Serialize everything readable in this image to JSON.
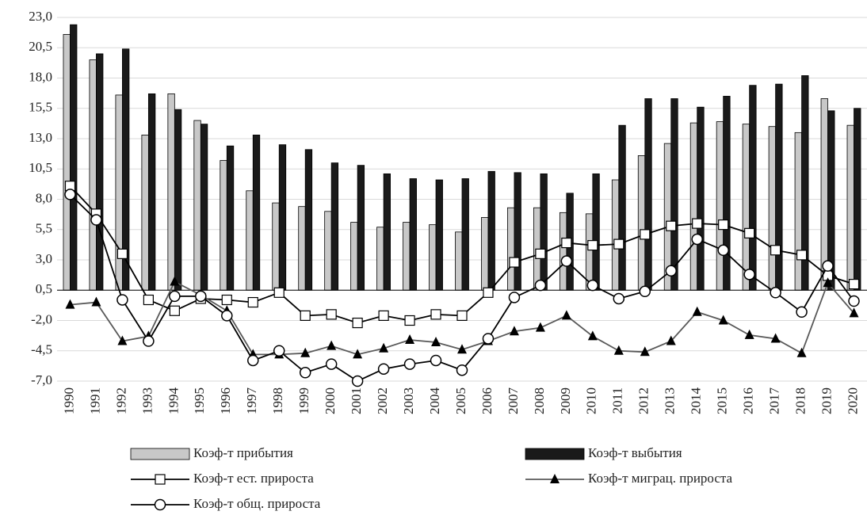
{
  "chart_data": {
    "type": "bar-line",
    "categories": [
      "1990",
      "1991",
      "1992",
      "1993",
      "1994",
      "1995",
      "1996",
      "1997",
      "1998",
      "1999",
      "2000",
      "2001",
      "2002",
      "2003",
      "2004",
      "2005",
      "2006",
      "2007",
      "2008",
      "2009",
      "2010",
      "2011",
      "2012",
      "2013",
      "2014",
      "2015",
      "2016",
      "2017",
      "2018",
      "2019",
      "2020"
    ],
    "ylim": [
      -7.0,
      23.0
    ],
    "yticks": [
      {
        "value": -7.0,
        "label": "-7,0"
      },
      {
        "value": -4.5,
        "label": "-4,5"
      },
      {
        "value": -2.0,
        "label": "-2,0"
      },
      {
        "value": 0.5,
        "label": "0,5"
      },
      {
        "value": 3.0,
        "label": "3,0"
      },
      {
        "value": 5.5,
        "label": "5,5"
      },
      {
        "value": 8.0,
        "label": "8,0"
      },
      {
        "value": 10.5,
        "label": "10,5"
      },
      {
        "value": 13.0,
        "label": "13,0"
      },
      {
        "value": 15.5,
        "label": "15,5"
      },
      {
        "value": 18.0,
        "label": "18,0"
      },
      {
        "value": 20.5,
        "label": "20,5"
      },
      {
        "value": 23.0,
        "label": "23,0"
      }
    ],
    "grid": true,
    "legend": "bottom",
    "series": [
      {
        "name": "Коэф-т прибытия",
        "kind": "bar",
        "color": "#c8c8c8",
        "values": [
          21.6,
          19.5,
          16.6,
          13.3,
          16.7,
          14.5,
          11.2,
          8.7,
          7.7,
          7.4,
          7.0,
          6.1,
          5.7,
          6.1,
          5.9,
          5.3,
          6.5,
          7.3,
          7.3,
          6.9,
          6.8,
          9.6,
          11.6,
          12.6,
          14.3,
          14.4,
          14.2,
          14.0,
          13.5,
          16.3,
          14.1
        ]
      },
      {
        "name": "Коэф-т выбытия",
        "kind": "bar",
        "color": "#1a1a1a",
        "values": [
          22.4,
          20.0,
          20.4,
          16.7,
          15.4,
          14.2,
          12.4,
          13.3,
          12.5,
          12.1,
          11.0,
          10.8,
          10.1,
          9.7,
          9.6,
          9.7,
          10.3,
          10.2,
          10.1,
          8.5,
          10.1,
          14.1,
          16.3,
          16.3,
          15.6,
          16.5,
          17.4,
          17.5,
          18.2,
          15.3,
          15.5
        ]
      },
      {
        "name": "Коэф-т ест. прироста",
        "kind": "line",
        "marker": "square",
        "color": "#000000",
        "values": [
          9.1,
          6.8,
          3.5,
          -0.3,
          -1.2,
          -0.2,
          -0.3,
          -0.5,
          0.3,
          -1.6,
          -1.5,
          -2.2,
          -1.6,
          -2.0,
          -1.5,
          -1.6,
          0.3,
          2.8,
          3.5,
          4.4,
          4.2,
          4.3,
          5.1,
          5.8,
          6.0,
          5.9,
          5.2,
          3.8,
          3.4,
          1.7,
          1.0
        ]
      },
      {
        "name": "Коэф-т миграц. прироста",
        "kind": "line",
        "marker": "triangle",
        "color": "#595959",
        "values": [
          -0.7,
          -0.5,
          -3.7,
          -3.3,
          1.2,
          0.1,
          -1.2,
          -4.8,
          -4.8,
          -4.7,
          -4.1,
          -4.8,
          -4.3,
          -3.6,
          -3.8,
          -4.4,
          -3.7,
          -2.9,
          -2.6,
          -1.6,
          -3.3,
          -4.5,
          -4.6,
          -3.7,
          -1.3,
          -2.0,
          -3.2,
          -3.5,
          -4.7,
          1.1,
          -1.4
        ]
      },
      {
        "name": "Коэф-т общ. прироста",
        "kind": "line",
        "marker": "circle",
        "color": "#000000",
        "values": [
          8.4,
          6.3,
          -0.3,
          -3.7,
          0.0,
          0.0,
          -1.6,
          -5.3,
          -4.5,
          -6.3,
          -5.6,
          -7.0,
          -6.0,
          -5.6,
          -5.3,
          -6.1,
          -3.5,
          -0.1,
          0.9,
          2.9,
          0.9,
          -0.2,
          0.4,
          2.1,
          4.7,
          3.8,
          1.8,
          0.3,
          -1.3,
          2.5,
          -0.4
        ]
      }
    ]
  }
}
